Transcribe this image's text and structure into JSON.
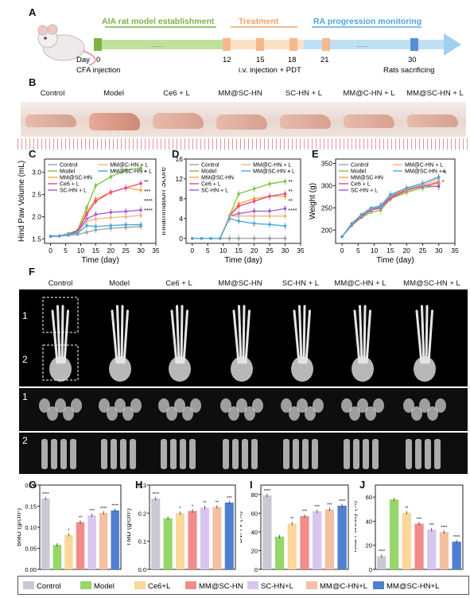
{
  "panels": {
    "A": "A",
    "B": "B",
    "C": "C",
    "D": "D",
    "E": "E",
    "F": "F",
    "G": "G",
    "H": "H",
    "I": "I",
    "J": "J"
  },
  "timeline": {
    "phase1": "AIA rat model establishment",
    "phase2": "Treatment",
    "phase3": "RA progression monitoring",
    "day_prefix": "Day",
    "ticks": [
      "0",
      "12",
      "15",
      "18",
      "21",
      "30"
    ],
    "note_left": "CFA injection",
    "note_mid": "i.v. injection + PDT",
    "note_right": "Rats sacrificing",
    "dots1": "......",
    "dots2": "......",
    "colors": {
      "phase1": "#7cb342",
      "phase2": "#f4a261",
      "phase3": "#5aa9e6"
    }
  },
  "groups_long": [
    "Control",
    "Model",
    "Ce6 + L",
    "MM@SC-HN",
    "SC-HN + L",
    "MM@C-HN + L",
    "MM@SC-HN + L"
  ],
  "groups_short": [
    "Control",
    "Model",
    "Ce6+L",
    "MM@SC-HN",
    "SC-HN+L",
    "MM@C-HN+L",
    "MM@SC-HN+L"
  ],
  "colors": [
    "#9e9e9e",
    "#7cc242",
    "#f5a93f",
    "#e8477a",
    "#9a5bd6",
    "#f4b183",
    "#4aa8d8"
  ],
  "bar_colors": [
    "#c9c9d3",
    "#96d66a",
    "#fcd79a",
    "#f28b8b",
    "#d8c6ef",
    "#f3c1a1",
    "#4f7fd1"
  ],
  "ct": {
    "roi1": "1",
    "roi2": "2",
    "row1": "1",
    "row2": "2"
  },
  "chart_data": [
    {
      "type": "line",
      "panel": "C",
      "xlabel": "Time (day)",
      "ylabel": "Hind Paw Volume (mL)",
      "xlim": [
        -2,
        35
      ],
      "ylim": [
        1.4,
        3.3
      ],
      "xticks": [
        0,
        5,
        10,
        15,
        20,
        25,
        30,
        35
      ],
      "yticks": [
        1.5,
        2.0,
        2.5,
        3.0
      ],
      "x": [
        0,
        3,
        6,
        9,
        12,
        15,
        20,
        25,
        30
      ],
      "series": [
        {
          "name": "Control",
          "values": [
            1.55,
            1.56,
            1.58,
            1.6,
            1.65,
            1.7,
            1.74,
            1.76,
            1.78
          ]
        },
        {
          "name": "Model",
          "values": [
            1.56,
            1.57,
            1.62,
            1.7,
            2.2,
            2.7,
            2.9,
            3.05,
            3.1
          ]
        },
        {
          "name": "MM@SC-HN",
          "values": [
            1.56,
            1.57,
            1.61,
            1.68,
            2.1,
            2.4,
            2.55,
            2.65,
            2.6
          ]
        },
        {
          "name": "Ce6 + L",
          "values": [
            1.56,
            1.57,
            1.61,
            1.68,
            2.05,
            2.35,
            2.55,
            2.65,
            2.75
          ]
        },
        {
          "name": "SC-HN + L",
          "values": [
            1.56,
            1.57,
            1.61,
            1.66,
            1.95,
            2.05,
            2.1,
            2.12,
            2.15
          ]
        },
        {
          "name": "MM@C-HN + L",
          "values": [
            1.56,
            1.57,
            1.6,
            1.64,
            1.9,
            1.95,
            1.98,
            2.0,
            2.03
          ]
        },
        {
          "name": "MM@SC-HN + L",
          "values": [
            1.56,
            1.57,
            1.6,
            1.63,
            1.8,
            1.78,
            1.8,
            1.82,
            1.82
          ]
        }
      ],
      "sig": [
        "*",
        "**",
        "***",
        "****",
        "****"
      ]
    },
    {
      "type": "line",
      "panel": "D",
      "xlabel": "Time (day)",
      "ylabel": "Inflammation Score",
      "xlim": [
        -2,
        35
      ],
      "ylim": [
        -1,
        16
      ],
      "xticks": [
        0,
        5,
        10,
        15,
        20,
        25,
        30,
        35
      ],
      "yticks": [
        0,
        4,
        8,
        12,
        16
      ],
      "x": [
        0,
        3,
        6,
        9,
        12,
        15,
        20,
        25,
        30
      ],
      "series": [
        {
          "name": "Control",
          "values": [
            0,
            0,
            0,
            0,
            0,
            0,
            0,
            0,
            0
          ]
        },
        {
          "name": "Model",
          "values": [
            0,
            0,
            0,
            0,
            4.5,
            9.0,
            10.0,
            11.0,
            11.5
          ]
        },
        {
          "name": "MM@SC-HN",
          "values": [
            0,
            0,
            0,
            0,
            4.5,
            7.0,
            8.0,
            8.5,
            8.5
          ]
        },
        {
          "name": "Ce6 + L",
          "values": [
            0,
            0,
            0,
            0,
            4.5,
            6.5,
            7.5,
            8.5,
            9.0
          ]
        },
        {
          "name": "SC-HN + L",
          "values": [
            0,
            0,
            0,
            0,
            4.5,
            5.0,
            5.5,
            5.5,
            6.0
          ]
        },
        {
          "name": "MM@C-HN + L",
          "values": [
            0,
            0,
            0,
            0,
            4.5,
            4.5,
            4.5,
            4.5,
            4.5
          ]
        },
        {
          "name": "MM@SC-HN + L",
          "values": [
            0,
            0,
            0,
            0,
            4.0,
            3.5,
            3.0,
            2.8,
            2.5
          ]
        }
      ],
      "sig": [
        "*",
        "**",
        "**",
        "**",
        "****"
      ]
    },
    {
      "type": "line",
      "panel": "E",
      "xlabel": "Time (day)",
      "ylabel": "Weight (g)",
      "xlim": [
        -2,
        35
      ],
      "ylim": [
        170,
        360
      ],
      "xticks": [
        0,
        5,
        10,
        15,
        20,
        25,
        30,
        35
      ],
      "yticks": [
        200,
        250,
        300,
        350
      ],
      "x": [
        0,
        3,
        6,
        9,
        12,
        15,
        20,
        25,
        30
      ],
      "series": [
        {
          "name": "Control",
          "values": [
            185,
            215,
            235,
            250,
            255,
            280,
            295,
            305,
            320
          ]
        },
        {
          "name": "Model",
          "values": [
            185,
            210,
            228,
            240,
            245,
            270,
            285,
            295,
            300
          ]
        },
        {
          "name": "MM@SC-HN",
          "values": [
            185,
            212,
            230,
            245,
            250,
            272,
            288,
            300,
            305
          ]
        },
        {
          "name": "Ce6 + L",
          "values": [
            185,
            212,
            230,
            245,
            250,
            272,
            290,
            298,
            308
          ]
        },
        {
          "name": "SC-HN + L",
          "values": [
            185,
            212,
            232,
            246,
            252,
            275,
            292,
            300,
            298
          ]
        },
        {
          "name": "MM@C-HN + L",
          "values": [
            185,
            214,
            233,
            248,
            254,
            278,
            292,
            302,
            312
          ]
        },
        {
          "name": "MM@SC-HN + L",
          "values": [
            185,
            214,
            234,
            249,
            255,
            280,
            294,
            305,
            318
          ]
        }
      ],
      "sig": [
        "**",
        "*"
      ]
    },
    {
      "type": "bar",
      "panel": "G",
      "ylabel": "BMD (g/cm³)",
      "ylim": [
        0,
        0.2
      ],
      "yticks": [
        0.0,
        0.05,
        0.1,
        0.15,
        0.2
      ],
      "values": [
        0.168,
        0.058,
        0.082,
        0.112,
        0.128,
        0.134,
        0.14
      ],
      "sig": [
        "****",
        "",
        "*",
        "**",
        "***",
        "****",
        "****"
      ]
    },
    {
      "type": "bar",
      "panel": "H",
      "ylabel": "TMD (g/cm³)",
      "ylim": [
        0,
        0.3
      ],
      "yticks": [
        0.0,
        0.1,
        0.2,
        0.3
      ],
      "values": [
        0.252,
        0.182,
        0.2,
        0.208,
        0.22,
        0.222,
        0.238
      ],
      "sig": [
        "****",
        "",
        "*",
        "*",
        "**",
        "**",
        "***"
      ]
    },
    {
      "type": "bar",
      "panel": "I",
      "ylabel": "BV/TV (%)",
      "ylim": [
        0,
        90
      ],
      "yticks": [
        0,
        20,
        40,
        60,
        80
      ],
      "values": [
        79,
        35,
        49,
        57,
        62,
        64,
        68
      ],
      "sig": [
        "****",
        "",
        "**",
        "***",
        "***",
        "***",
        "****"
      ]
    },
    {
      "type": "bar",
      "panel": "J",
      "ylabel": "Total Porosity (%)",
      "ylim": [
        0,
        70
      ],
      "yticks": [
        0,
        20,
        40,
        60
      ],
      "values": [
        11,
        58,
        47,
        38,
        33,
        31,
        23
      ],
      "sig": [
        "****",
        "",
        "**",
        "***",
        "***",
        "****",
        "****"
      ]
    }
  ]
}
